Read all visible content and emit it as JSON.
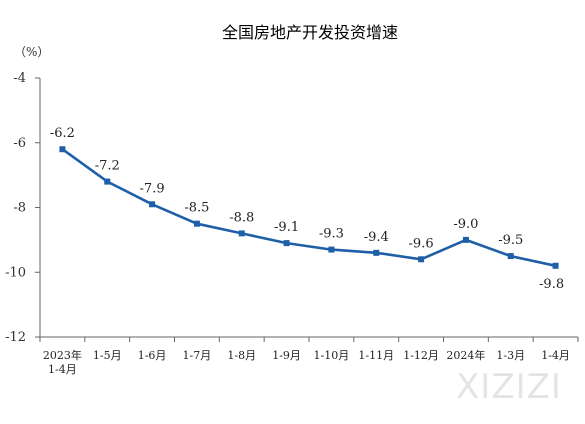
{
  "chart_data": {
    "type": "line",
    "title": "全国房地产开发投资增速",
    "unit_label": "（%）",
    "ylim": [
      -12,
      -4
    ],
    "yticks": [
      -4,
      -6,
      -8,
      -10,
      -12
    ],
    "categories": [
      [
        "2023年",
        "1-4月"
      ],
      [
        "1-5月"
      ],
      [
        "1-6月"
      ],
      [
        "1-7月"
      ],
      [
        "1-8月"
      ],
      [
        "1-9月"
      ],
      [
        "1-10月"
      ],
      [
        "1-11月"
      ],
      [
        "1-12月"
      ],
      [
        "2024年"
      ],
      [
        "1-3月"
      ],
      [
        "1-4月"
      ]
    ],
    "values": [
      -6.2,
      -7.2,
      -7.9,
      -8.5,
      -8.8,
      -9.1,
      -9.3,
      -9.4,
      -9.6,
      -9.0,
      -9.5,
      -9.8
    ],
    "labels": [
      "-6.2",
      "-7.2",
      "-7.9",
      "-8.5",
      "-8.8",
      "-9.1",
      "-9.3",
      "-9.4",
      "-9.6",
      "-9.0",
      "-9.5",
      "-9.8"
    ],
    "grid": false,
    "line_color": "#1f5fa8"
  },
  "watermark": "XIZIZI"
}
